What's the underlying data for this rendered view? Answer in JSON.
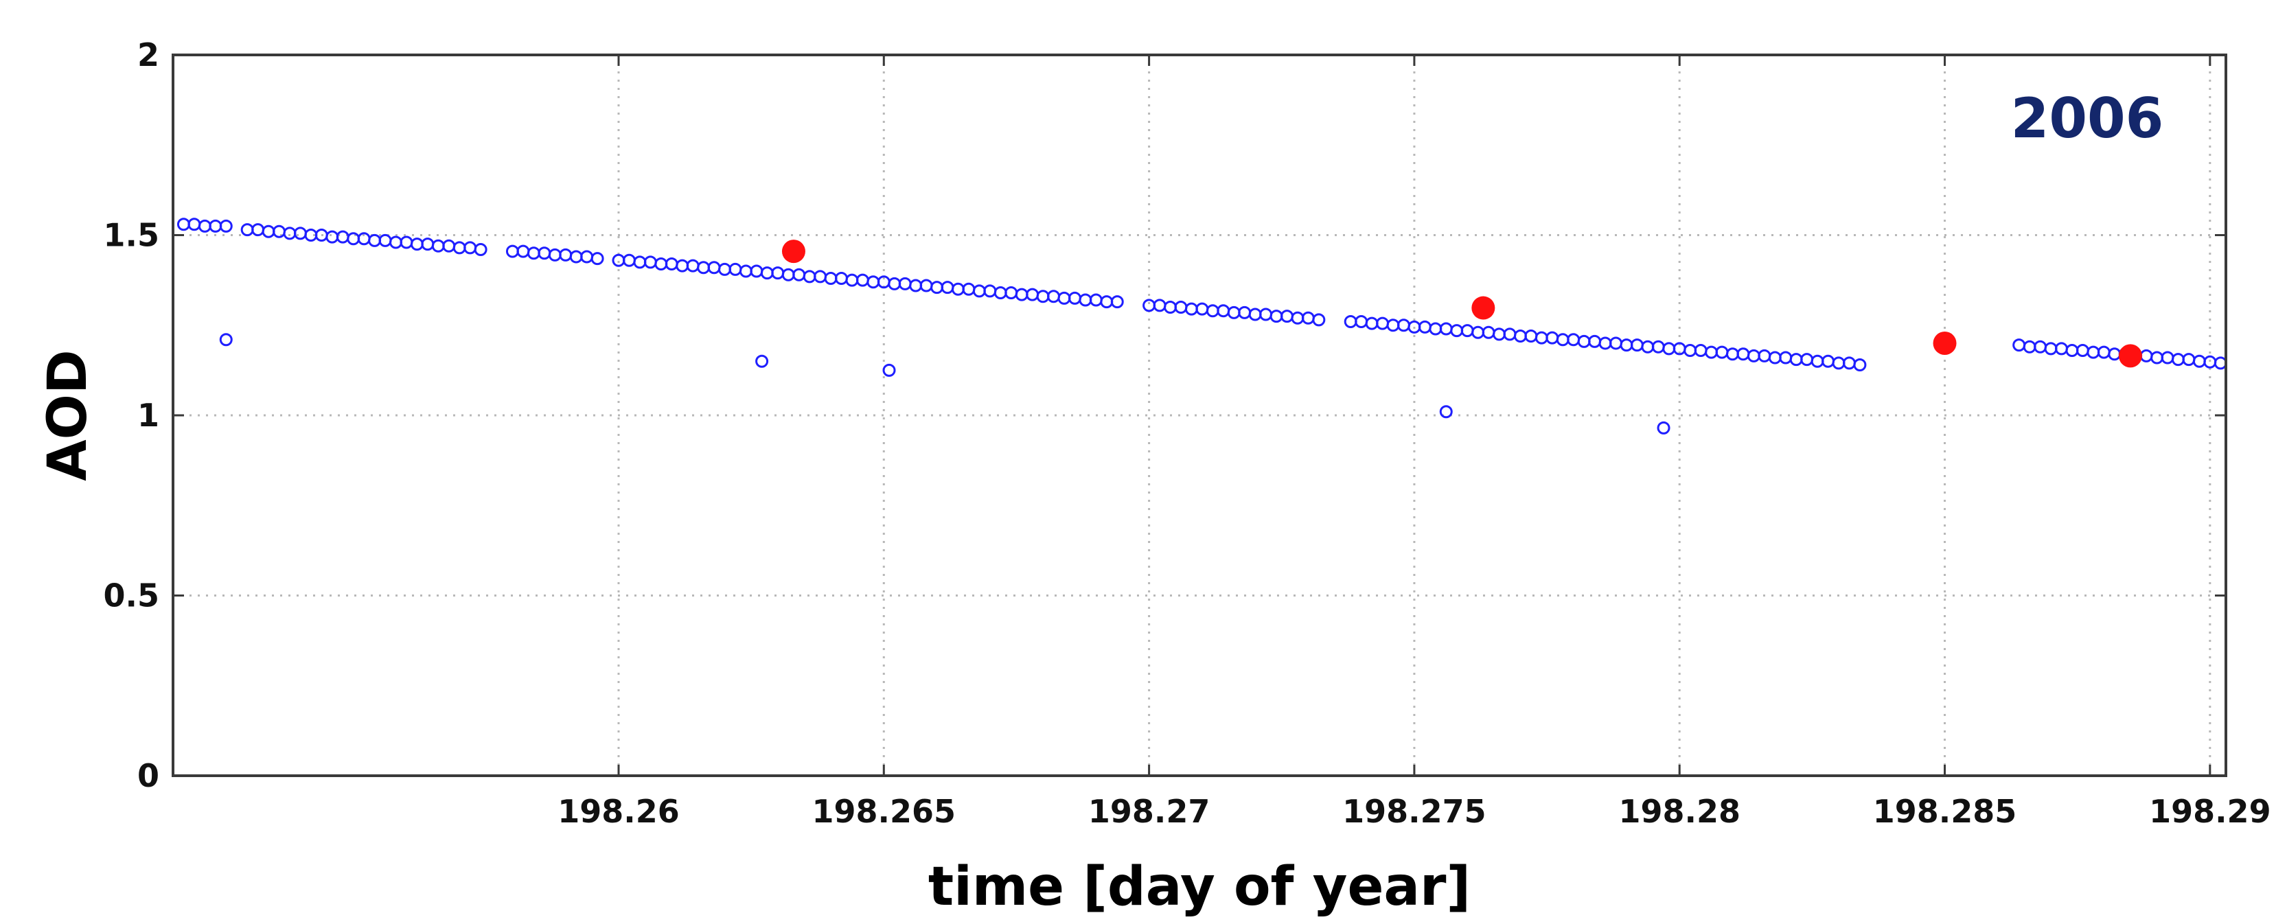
{
  "chart_data": {
    "type": "scatter",
    "title": "",
    "annotation": "2006",
    "xlabel": "time [day of year]",
    "ylabel": "AOD",
    "xlim": [
      198.2516,
      198.2903
    ],
    "ylim": [
      0,
      2
    ],
    "x_ticks": [
      198.26,
      198.265,
      198.27,
      198.275,
      198.28,
      198.285,
      198.29
    ],
    "x_tick_labels": [
      "198.26",
      "198.265",
      "198.27",
      "198.275",
      "198.28",
      "198.285",
      "198.29"
    ],
    "y_ticks": [
      0,
      0.5,
      1,
      1.5,
      2
    ],
    "y_tick_labels": [
      "0",
      "0.5",
      "1",
      "1.5",
      "2"
    ],
    "grid": true,
    "colors": {
      "measurements": "#1f1fff",
      "highlighted": "#ff1010",
      "annotation": "#14276b",
      "grid": "#b8b8b8",
      "frame": "#3a3a3a"
    },
    "series": [
      {
        "marker": "open-circle",
        "points": [
          [
            198.2518,
            1.53
          ],
          [
            198.252,
            1.53
          ],
          [
            198.2522,
            1.525
          ],
          [
            198.2524,
            1.525
          ],
          [
            198.2526,
            1.525
          ],
          [
            198.253,
            1.515
          ],
          [
            198.2532,
            1.515
          ],
          [
            198.2534,
            1.51
          ],
          [
            198.2536,
            1.51
          ],
          [
            198.2538,
            1.505
          ],
          [
            198.254,
            1.505
          ],
          [
            198.2542,
            1.5
          ],
          [
            198.2544,
            1.5
          ],
          [
            198.2546,
            1.495
          ],
          [
            198.2548,
            1.495
          ],
          [
            198.255,
            1.49
          ],
          [
            198.2552,
            1.49
          ],
          [
            198.2554,
            1.485
          ],
          [
            198.2556,
            1.485
          ],
          [
            198.2558,
            1.48
          ],
          [
            198.256,
            1.48
          ],
          [
            198.2562,
            1.475
          ],
          [
            198.2564,
            1.475
          ],
          [
            198.2566,
            1.47
          ],
          [
            198.2568,
            1.47
          ],
          [
            198.257,
            1.465
          ],
          [
            198.2572,
            1.465
          ],
          [
            198.2574,
            1.46
          ],
          [
            198.258,
            1.455
          ],
          [
            198.2582,
            1.455
          ],
          [
            198.2584,
            1.45
          ],
          [
            198.2586,
            1.45
          ],
          [
            198.2588,
            1.445
          ],
          [
            198.259,
            1.445
          ],
          [
            198.2592,
            1.44
          ],
          [
            198.2594,
            1.44
          ],
          [
            198.2596,
            1.435
          ],
          [
            198.26,
            1.43
          ],
          [
            198.2602,
            1.43
          ],
          [
            198.2604,
            1.425
          ],
          [
            198.2606,
            1.425
          ],
          [
            198.2608,
            1.42
          ],
          [
            198.261,
            1.42
          ],
          [
            198.2612,
            1.415
          ],
          [
            198.2614,
            1.415
          ],
          [
            198.2616,
            1.41
          ],
          [
            198.2618,
            1.41
          ],
          [
            198.262,
            1.405
          ],
          [
            198.2622,
            1.405
          ],
          [
            198.2624,
            1.4
          ],
          [
            198.2626,
            1.4
          ],
          [
            198.2628,
            1.395
          ],
          [
            198.263,
            1.395
          ],
          [
            198.2632,
            1.39
          ],
          [
            198.2634,
            1.39
          ],
          [
            198.2636,
            1.385
          ],
          [
            198.2638,
            1.385
          ],
          [
            198.264,
            1.38
          ],
          [
            198.2642,
            1.38
          ],
          [
            198.2644,
            1.375
          ],
          [
            198.2646,
            1.375
          ],
          [
            198.2648,
            1.37
          ],
          [
            198.265,
            1.37
          ],
          [
            198.2652,
            1.365
          ],
          [
            198.2654,
            1.365
          ],
          [
            198.2656,
            1.36
          ],
          [
            198.2658,
            1.36
          ],
          [
            198.266,
            1.355
          ],
          [
            198.2662,
            1.355
          ],
          [
            198.2664,
            1.35
          ],
          [
            198.2666,
            1.35
          ],
          [
            198.2668,
            1.345
          ],
          [
            198.267,
            1.345
          ],
          [
            198.2672,
            1.34
          ],
          [
            198.2674,
            1.34
          ],
          [
            198.2676,
            1.335
          ],
          [
            198.2678,
            1.335
          ],
          [
            198.268,
            1.33
          ],
          [
            198.2682,
            1.33
          ],
          [
            198.2684,
            1.325
          ],
          [
            198.2686,
            1.325
          ],
          [
            198.2688,
            1.32
          ],
          [
            198.269,
            1.32
          ],
          [
            198.2692,
            1.315
          ],
          [
            198.2694,
            1.315
          ],
          [
            198.27,
            1.305
          ],
          [
            198.2702,
            1.305
          ],
          [
            198.2704,
            1.3
          ],
          [
            198.2706,
            1.3
          ],
          [
            198.2708,
            1.295
          ],
          [
            198.271,
            1.295
          ],
          [
            198.2712,
            1.29
          ],
          [
            198.2714,
            1.29
          ],
          [
            198.2716,
            1.285
          ],
          [
            198.2718,
            1.285
          ],
          [
            198.272,
            1.28
          ],
          [
            198.2722,
            1.28
          ],
          [
            198.2724,
            1.275
          ],
          [
            198.2726,
            1.275
          ],
          [
            198.2728,
            1.27
          ],
          [
            198.273,
            1.27
          ],
          [
            198.2732,
            1.265
          ],
          [
            198.2738,
            1.26
          ],
          [
            198.274,
            1.26
          ],
          [
            198.2742,
            1.255
          ],
          [
            198.2744,
            1.255
          ],
          [
            198.2746,
            1.25
          ],
          [
            198.2748,
            1.25
          ],
          [
            198.275,
            1.245
          ],
          [
            198.2752,
            1.245
          ],
          [
            198.2754,
            1.24
          ],
          [
            198.2756,
            1.24
          ],
          [
            198.2758,
            1.235
          ],
          [
            198.276,
            1.235
          ],
          [
            198.2762,
            1.23
          ],
          [
            198.2764,
            1.23
          ],
          [
            198.2766,
            1.225
          ],
          [
            198.2768,
            1.225
          ],
          [
            198.277,
            1.22
          ],
          [
            198.2772,
            1.22
          ],
          [
            198.2774,
            1.215
          ],
          [
            198.2776,
            1.215
          ],
          [
            198.2778,
            1.21
          ],
          [
            198.278,
            1.21
          ],
          [
            198.2782,
            1.205
          ],
          [
            198.2784,
            1.205
          ],
          [
            198.2786,
            1.2
          ],
          [
            198.2788,
            1.2
          ],
          [
            198.279,
            1.195
          ],
          [
            198.2792,
            1.195
          ],
          [
            198.2794,
            1.19
          ],
          [
            198.2796,
            1.19
          ],
          [
            198.2798,
            1.185
          ],
          [
            198.28,
            1.185
          ],
          [
            198.2802,
            1.18
          ],
          [
            198.2804,
            1.18
          ],
          [
            198.2806,
            1.175
          ],
          [
            198.2808,
            1.175
          ],
          [
            198.281,
            1.17
          ],
          [
            198.2812,
            1.17
          ],
          [
            198.2814,
            1.165
          ],
          [
            198.2816,
            1.165
          ],
          [
            198.2818,
            1.16
          ],
          [
            198.282,
            1.16
          ],
          [
            198.2822,
            1.155
          ],
          [
            198.2824,
            1.155
          ],
          [
            198.2826,
            1.15
          ],
          [
            198.2828,
            1.15
          ],
          [
            198.283,
            1.145
          ],
          [
            198.2832,
            1.145
          ],
          [
            198.2834,
            1.14
          ],
          [
            198.2864,
            1.195
          ],
          [
            198.2866,
            1.19
          ],
          [
            198.2868,
            1.19
          ],
          [
            198.287,
            1.185
          ],
          [
            198.2872,
            1.185
          ],
          [
            198.2874,
            1.18
          ],
          [
            198.2876,
            1.18
          ],
          [
            198.2878,
            1.175
          ],
          [
            198.288,
            1.175
          ],
          [
            198.2882,
            1.17
          ],
          [
            198.2884,
            1.17
          ],
          [
            198.2886,
            1.165
          ],
          [
            198.2888,
            1.165
          ],
          [
            198.289,
            1.16
          ],
          [
            198.2892,
            1.16
          ],
          [
            198.2894,
            1.155
          ],
          [
            198.2896,
            1.155
          ],
          [
            198.2898,
            1.15
          ],
          [
            198.29,
            1.148
          ],
          [
            198.2902,
            1.145
          ],
          [
            198.2526,
            1.21
          ],
          [
            198.2627,
            1.15
          ],
          [
            198.2651,
            1.125
          ],
          [
            198.2756,
            1.01
          ],
          [
            198.2797,
            0.965
          ]
        ]
      },
      {
        "marker": "filled-circle",
        "points": [
          [
            198.2633,
            1.455
          ],
          [
            198.2763,
            1.298
          ],
          [
            198.285,
            1.2
          ],
          [
            198.2885,
            1.165
          ]
        ]
      }
    ]
  }
}
